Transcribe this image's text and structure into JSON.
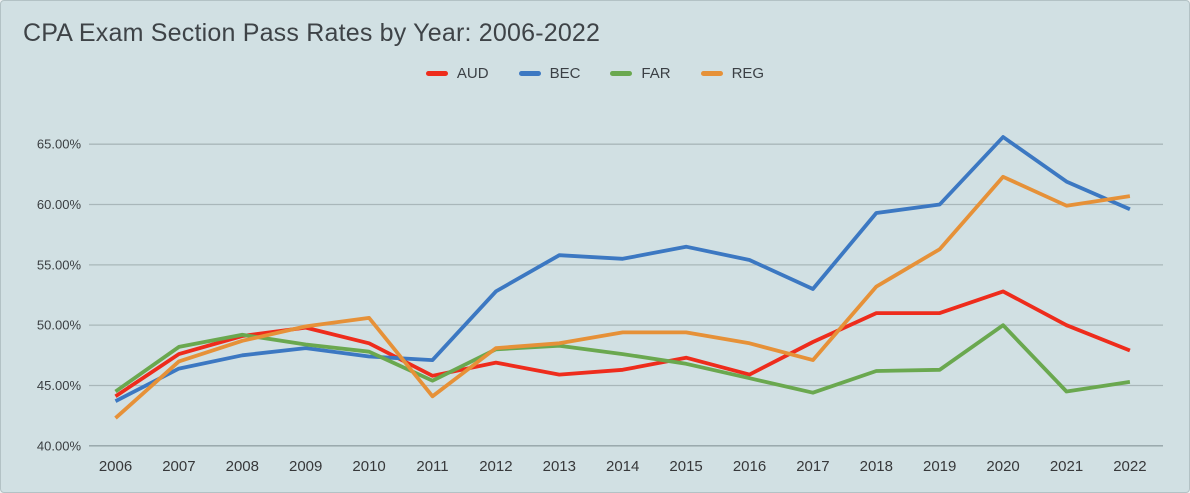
{
  "chart_title": "CPA Exam Section Pass Rates by Year: 2006-2022",
  "colors": {
    "background": "#d1e0e3",
    "gridline": "#a9b7ba",
    "axis_line": "#93a3a6",
    "title_text": "#3e4347",
    "tick_text": "#3a3e41"
  },
  "chart_data": {
    "type": "line",
    "title": "CPA Exam Section Pass Rates by Year: 2006-2022",
    "xlabel": "",
    "ylabel": "",
    "grid": true,
    "legend_position": "top-center",
    "ylim": [
      40,
      67
    ],
    "y_ticks": [
      {
        "label": "65.00%",
        "value": 65
      },
      {
        "label": "60.00%",
        "value": 60
      },
      {
        "label": "55.00%",
        "value": 55
      },
      {
        "label": "50.00%",
        "value": 50
      },
      {
        "label": "45.00%",
        "value": 45
      },
      {
        "label": "40.00%",
        "value": 40
      }
    ],
    "categories": [
      "2006",
      "2007",
      "2008",
      "2009",
      "2010",
      "2011",
      "2012",
      "2013",
      "2014",
      "2015",
      "2016",
      "2017",
      "2018",
      "2019",
      "2020",
      "2021",
      "2022"
    ],
    "series": [
      {
        "name": "AUD",
        "color": "#ee2c1c",
        "values": [
          44.1,
          47.6,
          49.1,
          49.8,
          48.5,
          45.8,
          46.9,
          45.9,
          46.3,
          47.3,
          45.9,
          48.6,
          51.0,
          51.0,
          52.8,
          50.0,
          47.9
        ]
      },
      {
        "name": "BEC",
        "color": "#3c78c2",
        "values": [
          43.7,
          46.4,
          47.5,
          48.1,
          47.4,
          47.1,
          52.8,
          55.8,
          55.5,
          56.5,
          55.4,
          53.0,
          59.3,
          60.0,
          65.6,
          61.9,
          59.6
        ]
      },
      {
        "name": "FAR",
        "color": "#6aa84f",
        "values": [
          44.5,
          48.2,
          49.2,
          48.4,
          47.8,
          45.4,
          48.0,
          48.3,
          47.6,
          46.8,
          45.6,
          44.4,
          46.2,
          46.3,
          50.0,
          44.5,
          45.3
        ]
      },
      {
        "name": "REG",
        "color": "#e69138",
        "values": [
          42.3,
          47.0,
          48.7,
          49.9,
          50.6,
          44.1,
          48.1,
          48.5,
          49.4,
          49.4,
          48.5,
          47.1,
          53.2,
          56.3,
          62.3,
          59.9,
          60.7
        ]
      }
    ]
  }
}
